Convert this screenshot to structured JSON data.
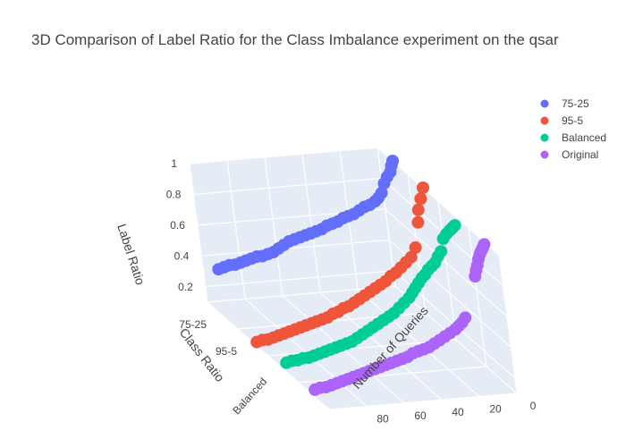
{
  "chart_data": {
    "type": "scatter3d",
    "title": "3D Comparison of Label Ratio for the Class Imbalance experiment on the qsar",
    "axes": {
      "x": {
        "title": "Number of Queries",
        "range": [
          0,
          100
        ],
        "ticks": [
          "0",
          "20",
          "40",
          "60",
          "80"
        ]
      },
      "y": {
        "title": "Class Ratio",
        "categories": [
          "75-25",
          "95-5",
          "Balanced",
          "Original"
        ],
        "tick_labels": [
          "75-25",
          "95-5",
          "Balanced"
        ]
      },
      "z": {
        "title": "Label Ratio",
        "range": [
          0.1,
          1.0
        ],
        "ticks": [
          "0.2",
          "0.4",
          "0.6",
          "0.8",
          "1"
        ]
      }
    },
    "legend": {
      "position": "top-right"
    },
    "series": [
      {
        "name": "75-25",
        "color": "#636efa",
        "points": [
          [
            0,
            1.0
          ],
          [
            1,
            0.97
          ],
          [
            2,
            0.93
          ],
          [
            4,
            0.9
          ],
          [
            6,
            0.86
          ],
          [
            8,
            0.8
          ],
          [
            10,
            0.77
          ],
          [
            12,
            0.75
          ],
          [
            15,
            0.73
          ],
          [
            18,
            0.72
          ],
          [
            21,
            0.7
          ],
          [
            24,
            0.68
          ],
          [
            27,
            0.67
          ],
          [
            30,
            0.66
          ],
          [
            33,
            0.64
          ],
          [
            36,
            0.63
          ],
          [
            39,
            0.62
          ],
          [
            42,
            0.6
          ],
          [
            45,
            0.59
          ],
          [
            48,
            0.58
          ],
          [
            51,
            0.57
          ],
          [
            54,
            0.56
          ],
          [
            57,
            0.55
          ],
          [
            60,
            0.54
          ],
          [
            63,
            0.52
          ],
          [
            66,
            0.5
          ],
          [
            69,
            0.48
          ],
          [
            72,
            0.47
          ],
          [
            75,
            0.46
          ],
          [
            78,
            0.46
          ],
          [
            81,
            0.45
          ],
          [
            84,
            0.44
          ],
          [
            87,
            0.43
          ],
          [
            90,
            0.42
          ],
          [
            93,
            0.42
          ],
          [
            96,
            0.41
          ],
          [
            99,
            0.4
          ]
        ]
      },
      {
        "name": "95-5",
        "color": "#ef553b",
        "points": [
          [
            0,
            1.0
          ],
          [
            2,
            0.93
          ],
          [
            4,
            0.86
          ],
          [
            5,
            0.78
          ],
          [
            8,
            0.62
          ],
          [
            11,
            0.56
          ],
          [
            14,
            0.53
          ],
          [
            17,
            0.5
          ],
          [
            20,
            0.47
          ],
          [
            23,
            0.45
          ],
          [
            26,
            0.42
          ],
          [
            29,
            0.4
          ],
          [
            32,
            0.38
          ],
          [
            35,
            0.36
          ],
          [
            38,
            0.34
          ],
          [
            41,
            0.32
          ],
          [
            44,
            0.3
          ],
          [
            47,
            0.28
          ],
          [
            50,
            0.27
          ],
          [
            53,
            0.25
          ],
          [
            56,
            0.24
          ],
          [
            59,
            0.22
          ],
          [
            62,
            0.21
          ],
          [
            65,
            0.2
          ],
          [
            68,
            0.19
          ],
          [
            71,
            0.18
          ],
          [
            74,
            0.17
          ],
          [
            77,
            0.16
          ],
          [
            80,
            0.15
          ],
          [
            83,
            0.14
          ],
          [
            86,
            0.13
          ],
          [
            89,
            0.12
          ],
          [
            92,
            0.11
          ],
          [
            95,
            0.11
          ],
          [
            98,
            0.1
          ]
        ]
      },
      {
        "name": "Balanced",
        "color": "#00cc96",
        "points": [
          [
            0,
            0.93
          ],
          [
            1,
            0.92
          ],
          [
            2,
            0.91
          ],
          [
            3,
            0.9
          ],
          [
            5,
            0.88
          ],
          [
            7,
            0.85
          ],
          [
            9,
            0.77
          ],
          [
            11,
            0.74
          ],
          [
            13,
            0.7
          ],
          [
            15,
            0.68
          ],
          [
            17,
            0.66
          ],
          [
            19,
            0.63
          ],
          [
            21,
            0.61
          ],
          [
            23,
            0.58
          ],
          [
            25,
            0.55
          ],
          [
            27,
            0.52
          ],
          [
            29,
            0.49
          ],
          [
            32,
            0.46
          ],
          [
            35,
            0.43
          ],
          [
            38,
            0.4
          ],
          [
            41,
            0.38
          ],
          [
            44,
            0.36
          ],
          [
            47,
            0.34
          ],
          [
            50,
            0.32
          ],
          [
            53,
            0.3
          ],
          [
            56,
            0.28
          ],
          [
            59,
            0.26
          ],
          [
            62,
            0.24
          ],
          [
            65,
            0.23
          ],
          [
            68,
            0.22
          ],
          [
            71,
            0.21
          ],
          [
            74,
            0.2
          ],
          [
            77,
            0.19
          ],
          [
            80,
            0.18
          ],
          [
            83,
            0.17
          ],
          [
            86,
            0.16
          ],
          [
            89,
            0.16
          ],
          [
            92,
            0.15
          ],
          [
            95,
            0.15
          ],
          [
            98,
            0.14
          ]
        ]
      },
      {
        "name": "Original",
        "color": "#ab63fa",
        "points": [
          [
            0,
            0.98
          ],
          [
            1,
            0.96
          ],
          [
            2,
            0.94
          ],
          [
            3,
            0.92
          ],
          [
            4,
            0.89
          ],
          [
            5,
            0.85
          ],
          [
            6,
            0.82
          ],
          [
            7,
            0.78
          ],
          [
            15,
            0.52
          ],
          [
            17,
            0.49
          ],
          [
            19,
            0.47
          ],
          [
            21,
            0.45
          ],
          [
            24,
            0.43
          ],
          [
            27,
            0.41
          ],
          [
            30,
            0.39
          ],
          [
            33,
            0.37
          ],
          [
            36,
            0.35
          ],
          [
            39,
            0.34
          ],
          [
            42,
            0.33
          ],
          [
            45,
            0.32
          ],
          [
            48,
            0.3
          ],
          [
            51,
            0.29
          ],
          [
            54,
            0.28
          ],
          [
            57,
            0.27
          ],
          [
            60,
            0.26
          ],
          [
            63,
            0.25
          ],
          [
            66,
            0.24
          ],
          [
            69,
            0.23
          ],
          [
            72,
            0.22
          ],
          [
            75,
            0.21
          ],
          [
            78,
            0.2
          ],
          [
            81,
            0.19
          ],
          [
            84,
            0.18
          ],
          [
            87,
            0.17
          ],
          [
            90,
            0.16
          ],
          [
            93,
            0.15
          ],
          [
            96,
            0.15
          ],
          [
            99,
            0.14
          ]
        ]
      }
    ]
  }
}
